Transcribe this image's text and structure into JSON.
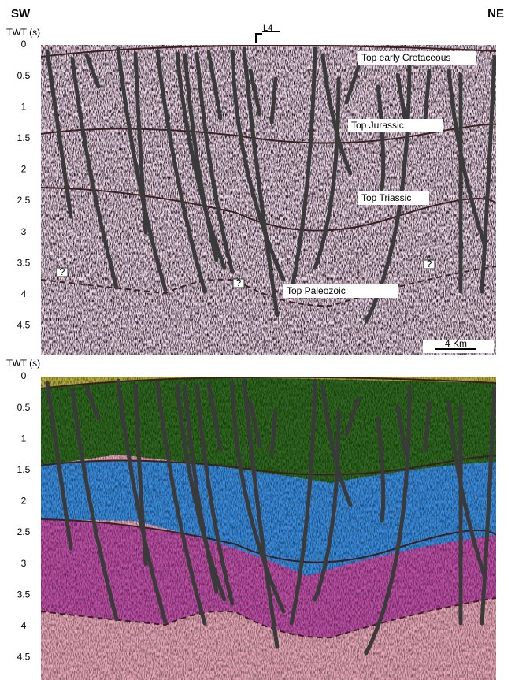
{
  "header": {
    "left": "SW",
    "right": "NE",
    "line_label": "L4"
  },
  "panels": [
    {
      "axis_label": "TWT (s)",
      "ticks": [
        0,
        0.5,
        1,
        1.5,
        2,
        2.5,
        3,
        3.5,
        4,
        4.5
      ],
      "horizons": [
        "Top early Cretaceous",
        "Top Jurassic",
        "Top Triassic",
        "Top Paleozoic"
      ],
      "question_marks": [
        "?",
        "?",
        "?"
      ],
      "scale_bar": "4 Km"
    },
    {
      "axis_label": "TWT (s)",
      "ticks": [
        0,
        0.5,
        1,
        1.5,
        2,
        2.5,
        3,
        3.5,
        4,
        4.5
      ]
    }
  ]
}
